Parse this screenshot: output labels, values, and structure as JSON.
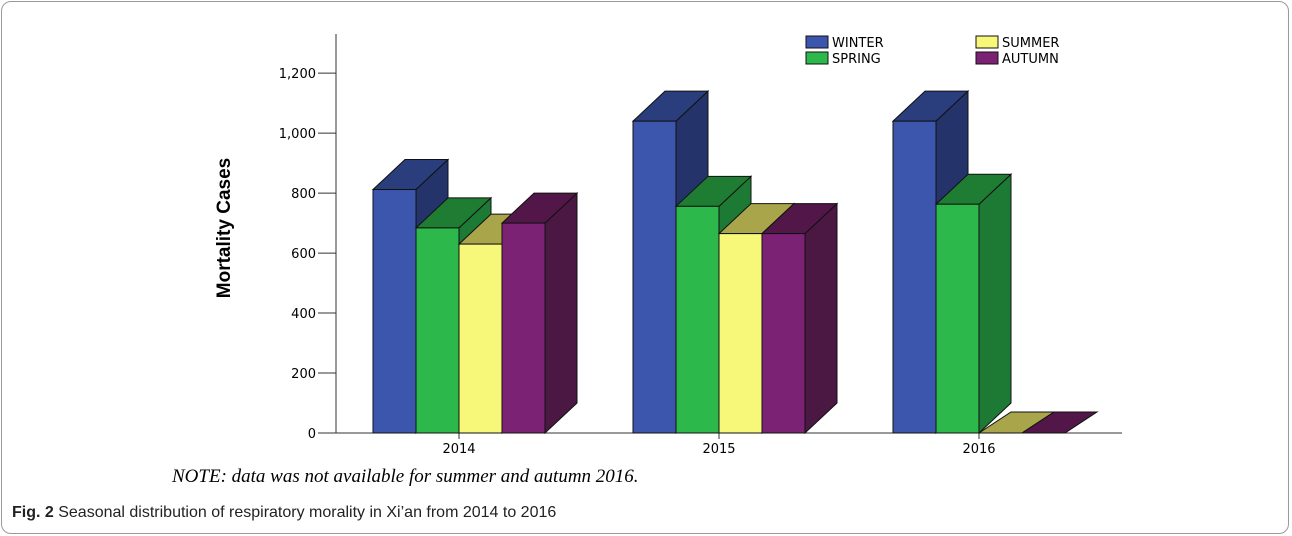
{
  "chart_data": {
    "type": "bar",
    "style": "3d-clustered",
    "categories": [
      "2014",
      "2015",
      "2016"
    ],
    "series": [
      {
        "name": "WINTER",
        "values": [
          812,
          1040,
          1040
        ],
        "color": "#3c56ad",
        "top": "#2a3d7c",
        "side": "#24346a"
      },
      {
        "name": "SPRING",
        "values": [
          684,
          756,
          763
        ],
        "color": "#2db84b",
        "top": "#1f7d33",
        "side": "#1d7a34"
      },
      {
        "name": "SUMMER",
        "values": [
          630,
          665,
          null
        ],
        "color": "#f7f77a",
        "top": "#a9a54b",
        "side": "#9d9a4a"
      },
      {
        "name": "AUTUMN",
        "values": [
          700,
          665,
          null
        ],
        "color": "#7b2275",
        "top": "#531648",
        "side": "#4b1843"
      }
    ],
    "ylabel": "Mortality Cases",
    "xlabel": "",
    "ylim": [
      0,
      1300
    ],
    "yticks": [
      "0",
      "200",
      "400",
      "600",
      "800",
      "1,000",
      "1,200"
    ],
    "legend_placement": "top-right",
    "grid": false
  },
  "note": "NOTE: data was not available for summer and autumn 2016.",
  "caption": {
    "label": "Fig. 2",
    "text": "Seasonal distribution of respiratory morality in Xi’an from 2014 to 2016"
  }
}
